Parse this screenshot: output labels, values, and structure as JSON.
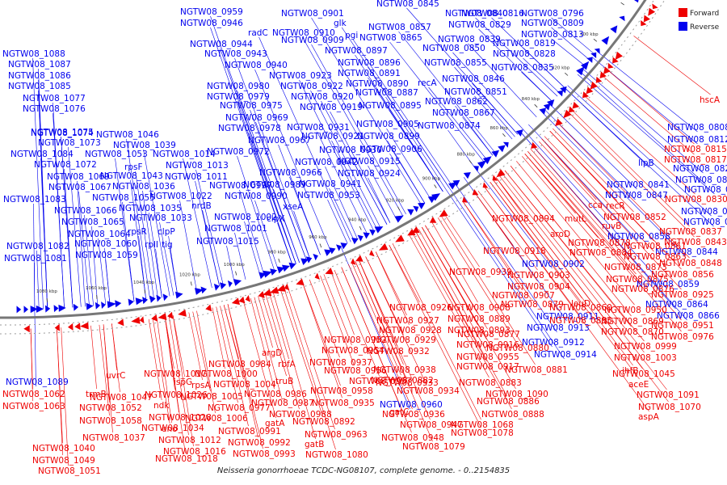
{
  "colors": {
    "forward": "#ee0000",
    "reverse": "#0000ee",
    "backbone": "#777777"
  },
  "legend": [
    {
      "name": "Forward",
      "color": "#ee0000"
    },
    {
      "name": "Reverse",
      "color": "#0000ee"
    }
  ],
  "title": "Neisseria gonorrhoeae TCDC-NG08107, complete genome. - 0..2154835",
  "ticks": [
    "780 kbp",
    "800 kbp",
    "820 kbp",
    "840 kbp",
    "860 kbp",
    "880 kbp",
    "900 kbp",
    "920 kbp",
    "940 kbp",
    "960 kbp",
    "980 kbp",
    "1000 kbp",
    "1020 kbp",
    "1040 kbp",
    "1060 kbp",
    "1080 kbp"
  ],
  "reverse_labels": [
    {
      "t": "NGTW08_0845"
    },
    {
      "t": "NGTW08_0840"
    },
    {
      "t": "NGTW08_0816"
    },
    {
      "t": "NGTW08_0796"
    },
    {
      "t": "NGTW08_0959"
    },
    {
      "t": "NGTW08_0946"
    },
    {
      "t": "NGTW08_0901"
    },
    {
      "t": "glk"
    },
    {
      "t": "NGTW08_0857"
    },
    {
      "t": "NGTW08_0829"
    },
    {
      "t": "NGTW08_0809"
    },
    {
      "t": "radC"
    },
    {
      "t": "NGTW08_0910"
    },
    {
      "t": "pgi"
    },
    {
      "t": "NGTW08_0839"
    },
    {
      "t": "NGTW08_0813"
    },
    {
      "t": "NGTW08_0944"
    },
    {
      "t": "NGTW08_0909"
    },
    {
      "t": "NGTW08_0865"
    },
    {
      "t": "NGTW08_0819"
    },
    {
      "t": "NGTW08_1088"
    },
    {
      "t": "NGTW08_0943"
    },
    {
      "t": "NGTW08_0897"
    },
    {
      "t": "NGTW08_0850"
    },
    {
      "t": "NGTW08_0828"
    },
    {
      "t": "NGTW08_1087"
    },
    {
      "t": "NGTW08_0940"
    },
    {
      "t": "NGTW08_0896"
    },
    {
      "t": "NGTW08_0855"
    },
    {
      "t": "NGTW08_0835"
    },
    {
      "t": "NGTW08_1086"
    },
    {
      "t": "NGTW08_0923"
    },
    {
      "t": "NGTW08_0891"
    },
    {
      "t": "NGTW08_0846"
    },
    {
      "t": "NGTW08_1085"
    },
    {
      "t": "NGTW08_0980"
    },
    {
      "t": "NGTW08_0922"
    },
    {
      "t": "NGTW08_0890"
    },
    {
      "t": "recA"
    },
    {
      "t": "NGTW08_0979"
    },
    {
      "t": "NGTW08_0920"
    },
    {
      "t": "NGTW08_0887"
    },
    {
      "t": "NGTW08_0851"
    },
    {
      "t": "NGTW08_1077"
    },
    {
      "t": "NGTW08_0975"
    },
    {
      "t": "NGTW08_0919"
    },
    {
      "t": "NGTW08_0895"
    },
    {
      "t": "NGTW08_0862"
    },
    {
      "t": "NGTW08_1076"
    },
    {
      "t": "NGTW08_0969"
    },
    {
      "t": "NGTW08_0867"
    },
    {
      "t": "NGTW08_1075"
    },
    {
      "t": "NGTW08_0931"
    },
    {
      "t": "NGTW08_0905"
    },
    {
      "t": "NGTW08_0874"
    },
    {
      "t": "NGTW08_1074"
    },
    {
      "t": "NGTW08_1046"
    },
    {
      "t": "NGTW08_0978"
    },
    {
      "t": "NGTW08_0921"
    },
    {
      "t": "NGTW08_0899"
    },
    {
      "t": "NGTW08_1073"
    },
    {
      "t": "NGTW08_1039"
    },
    {
      "t": "NGTW08_0967"
    },
    {
      "t": "NGTW08_0930"
    },
    {
      "t": "NGTW08_0906"
    },
    {
      "t": "NGTW08_1084"
    },
    {
      "t": "NGTW08_1053"
    },
    {
      "t": "NGTW08_1014"
    },
    {
      "t": "NGTW08_0972"
    },
    {
      "t": "NGTW08_0942"
    },
    {
      "t": "NGTW08_0915"
    },
    {
      "t": "NGTW08_1072"
    },
    {
      "t": "rpsF"
    },
    {
      "t": "NGTW08_1013"
    },
    {
      "t": "NGTW08_0966"
    },
    {
      "t": "NGTW08_0924"
    },
    {
      "t": "NGTW08_1069"
    },
    {
      "t": "NGTW08_1043"
    },
    {
      "t": "NGTW08_1011"
    },
    {
      "t": "NGTW08_0941"
    },
    {
      "t": "NGTW08_1067"
    },
    {
      "t": "NGTW08_1036"
    },
    {
      "t": "NGTW08_0997"
    },
    {
      "t": "NGTW08_0989"
    },
    {
      "t": "NGTW08_0953"
    },
    {
      "t": "NGTW08_1083"
    },
    {
      "t": "NGTW08_1055"
    },
    {
      "t": "NGTW08_1022"
    },
    {
      "t": "nrdB"
    },
    {
      "t": "NGTW08_0990"
    },
    {
      "t": "xseA"
    },
    {
      "t": "NGTW08_1066"
    },
    {
      "t": "NGTW08_1035"
    },
    {
      "t": "NGTW08_1002"
    },
    {
      "t": "clpX"
    },
    {
      "t": "NGTW08_1065"
    },
    {
      "t": "NGTW08_1033"
    },
    {
      "t": "NGTW08_1001"
    },
    {
      "t": "NGTW08_1064"
    },
    {
      "t": "rpsR"
    },
    {
      "t": "clpP"
    },
    {
      "t": "NGTW08_1015"
    },
    {
      "t": "NGTW08_1082"
    },
    {
      "t": "NGTW08_1060"
    },
    {
      "t": "rplI"
    },
    {
      "t": "tig"
    },
    {
      "t": "NGTW08_1081"
    },
    {
      "t": "NGTW08_1059"
    },
    {
      "t": "NGTW08_0808"
    },
    {
      "t": "NGTW08_0812"
    },
    {
      "t": "NGTW08_0820"
    },
    {
      "t": "NGTW08_0821"
    },
    {
      "t": "lipB"
    },
    {
      "t": "NGTW08_0824"
    },
    {
      "t": "NGTW08_0841"
    },
    {
      "t": "NGTW08_0847"
    },
    {
      "t": "NGTW08_0831"
    },
    {
      "t": "NGTW08_0834"
    },
    {
      "t": "NGTW08_0858"
    },
    {
      "t": "NGTW08_0844"
    },
    {
      "t": "NGTW08_0902"
    },
    {
      "t": "NGTW08_0859"
    },
    {
      "t": "NGTW08_0911"
    },
    {
      "t": "NGTW08_0864"
    },
    {
      "t": "NGTW08_0866"
    },
    {
      "t": "NGTW08_0913"
    },
    {
      "t": "NGTW08_0912"
    },
    {
      "t": "NGTW08_0914"
    },
    {
      "t": "NGTW08_0960"
    },
    {
      "t": "NGTW08_1089"
    }
  ],
  "forward_labels": [
    {
      "t": "hscA"
    },
    {
      "t": "NGTW08_0815"
    },
    {
      "t": "NGTW08_0817"
    },
    {
      "t": "NGTW08_0830"
    },
    {
      "t": "cca"
    },
    {
      "t": "recR"
    },
    {
      "t": "NGTW08_0852"
    },
    {
      "t": "NGTW08_0837"
    },
    {
      "t": "ruvB"
    },
    {
      "t": "NGTW08_0843"
    },
    {
      "t": "NGTW08_0894"
    },
    {
      "t": "mutL"
    },
    {
      "t": "aroD"
    },
    {
      "t": "NGTW08_0878"
    },
    {
      "t": "NGTW08_0861"
    },
    {
      "t": "NGTW08_0884"
    },
    {
      "t": "NGTW08_0863"
    },
    {
      "t": "NGTW08_0848"
    },
    {
      "t": "NGTW08_0918"
    },
    {
      "t": "NGTW08_0873"
    },
    {
      "t": "NGTW08_0903"
    },
    {
      "t": "NGTW08_0875"
    },
    {
      "t": "NGTW08_0856"
    },
    {
      "t": "NGTW08_0939"
    },
    {
      "t": "NGTW08_0904"
    },
    {
      "t": "NGTW08_0876"
    },
    {
      "t": "NGTW08_0925"
    },
    {
      "t": "NGTW08_0907"
    },
    {
      "t": "NGTW08_0879"
    },
    {
      "t": "NGTW08_0860"
    },
    {
      "t": "leuD"
    },
    {
      "t": "NGTW08_0926"
    },
    {
      "t": "NGTW08_0908"
    },
    {
      "t": "NGTW08_0885"
    },
    {
      "t": "NGTW08_0950"
    },
    {
      "t": "NGTW08_0927"
    },
    {
      "t": "NGTW08_0889"
    },
    {
      "t": "NGTW08_0869"
    },
    {
      "t": "NGTW08_0951"
    },
    {
      "t": "NGTW08_0928"
    },
    {
      "t": "NGTW08_0893"
    },
    {
      "t": "NGTW08_0870"
    },
    {
      "t": "NGTW08_0976"
    },
    {
      "t": "NGTW08_0952"
    },
    {
      "t": "NGTW08_0929"
    },
    {
      "t": "NGTW08_0877"
    },
    {
      "t": "NGTW08_0999"
    },
    {
      "t": "argD"
    },
    {
      "t": "NGTW08_0954"
    },
    {
      "t": "NGTW08_0932"
    },
    {
      "t": "NGTW08_0916"
    },
    {
      "t": "NGTW08_0880"
    },
    {
      "t": "NGTW08_1003"
    },
    {
      "t": "rbfA"
    },
    {
      "t": "NGTW08_0937"
    },
    {
      "t": "NGTW08_0955"
    },
    {
      "t": "NGTW08_0938"
    },
    {
      "t": "NGTW08_0917"
    },
    {
      "t": "NGTW08_0881"
    },
    {
      "t": "ihfB"
    },
    {
      "t": "NGTW08_0984"
    },
    {
      "t": "NGTW08_0956"
    },
    {
      "t": "NGTW08_0882"
    },
    {
      "t": "NGTW08_1045"
    },
    {
      "t": "NGTW08_1017"
    },
    {
      "t": "NGTW08_1000"
    },
    {
      "t": "truB"
    },
    {
      "t": "NGTW08_0957"
    },
    {
      "t": "NGTW08_0933"
    },
    {
      "t": "NGTW08_0883"
    },
    {
      "t": "aceE"
    },
    {
      "t": "uvrC"
    },
    {
      "t": "ispG"
    },
    {
      "t": "rpsA"
    },
    {
      "t": "NGTW08_1004"
    },
    {
      "t": "NGTW08_0986"
    },
    {
      "t": "NGTW08_0958"
    },
    {
      "t": "NGTW08_0934"
    },
    {
      "t": "NGTW08_1090"
    },
    {
      "t": "NGTW08_1062"
    },
    {
      "t": "trmB"
    },
    {
      "t": "NGTW08_1026"
    },
    {
      "t": "NGTW08_1005"
    },
    {
      "t": "NGTW08_0987"
    },
    {
      "t": "NGTW08_0935"
    },
    {
      "t": "NGTW08_0886"
    },
    {
      "t": "NGTW08_1091"
    },
    {
      "t": "NGTW08_1063"
    },
    {
      "t": "NGTW08_1047"
    },
    {
      "t": "ndk"
    },
    {
      "t": "NGTW08_0977"
    },
    {
      "t": "gatC"
    },
    {
      "t": "NGTW08_0936"
    },
    {
      "t": "NGTW08_0888"
    },
    {
      "t": "NGTW08_1070"
    },
    {
      "t": "NGTW08_1052"
    },
    {
      "t": "NGTW08_1028"
    },
    {
      "t": "NGTW08_1006"
    },
    {
      "t": "NGTW08_0988"
    },
    {
      "t": "NGTW08_0892"
    },
    {
      "t": "aspA"
    },
    {
      "t": "NGTW08_1058"
    },
    {
      "t": "NGTW08_1034"
    },
    {
      "t": "eno"
    },
    {
      "t": "gatA"
    },
    {
      "t": "NGTW08_0947"
    },
    {
      "t": "NGTW08_1068"
    },
    {
      "t": "NGTW08_1037"
    },
    {
      "t": "NGTW08_1012"
    },
    {
      "t": "NGTW08_0991"
    },
    {
      "t": "NGTW08_0963"
    },
    {
      "t": "NGTW08_0948"
    },
    {
      "t": "NGTW08_1078"
    },
    {
      "t": "NGTW08_1040"
    },
    {
      "t": "NGTW08_1016"
    },
    {
      "t": "NGTW08_0992"
    },
    {
      "t": "gatB"
    },
    {
      "t": "NGTW08_1079"
    },
    {
      "t": "NGTW08_1049"
    },
    {
      "t": "NGTW08_1018"
    },
    {
      "t": "NGTW08_0993"
    },
    {
      "t": "NGTW08_1080"
    },
    {
      "t": "NGTW08_1051"
    }
  ]
}
